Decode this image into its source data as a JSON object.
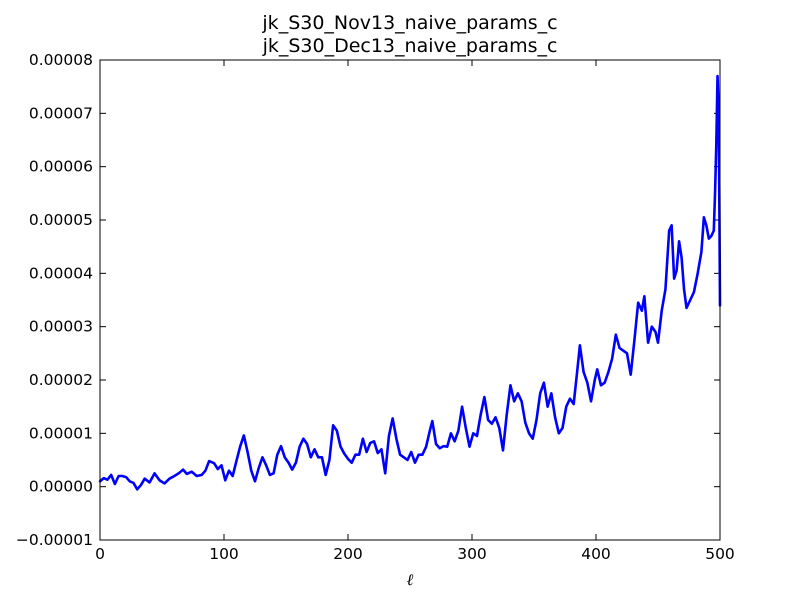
{
  "chart_data": {
    "type": "line",
    "title_lines": [
      "jk_S30_Nov13_naive_params_c",
      "jk_S30_Dec13_naive_params_c"
    ],
    "xlabel": "ℓ",
    "ylabel": "",
    "xlim": [
      0,
      500
    ],
    "ylim": [
      -1e-05,
      8e-05
    ],
    "x_ticks": [
      0,
      100,
      200,
      300,
      400,
      500
    ],
    "x_tick_labels": [
      "0",
      "100",
      "200",
      "300",
      "400",
      "500"
    ],
    "y_ticks": [
      -1e-05,
      0,
      1e-05,
      2e-05,
      3e-05,
      4e-05,
      5e-05,
      6e-05,
      7e-05,
      8e-05
    ],
    "y_tick_labels": [
      "−0.00001",
      "0.00000",
      "0.00001",
      "0.00002",
      "0.00003",
      "0.00004",
      "0.00005",
      "0.00006",
      "0.00007",
      "0.00008"
    ],
    "grid": false,
    "series": [
      {
        "color": "#0000ff",
        "points": [
          [
            0,
            1e-06
          ],
          [
            3,
            1.6e-06
          ],
          [
            6,
            1.3e-06
          ],
          [
            9,
            2.2e-06
          ],
          [
            12,
            5e-07
          ],
          [
            15,
            2e-06
          ],
          [
            18,
            2e-06
          ],
          [
            21,
            1.8e-06
          ],
          [
            24,
            1e-06
          ],
          [
            27,
            7e-07
          ],
          [
            30,
            -5e-07
          ],
          [
            33,
            3e-07
          ],
          [
            36,
            1.5e-06
          ],
          [
            40,
            8e-07
          ],
          [
            44,
            2.5e-06
          ],
          [
            48,
            1.2e-06
          ],
          [
            52,
            6e-07
          ],
          [
            56,
            1.5e-06
          ],
          [
            60,
            2e-06
          ],
          [
            64,
            2.6e-06
          ],
          [
            67,
            3.2e-06
          ],
          [
            70,
            2.4e-06
          ],
          [
            74,
            2.8e-06
          ],
          [
            78,
            2e-06
          ],
          [
            82,
            2.2e-06
          ],
          [
            85,
            3e-06
          ],
          [
            88,
            4.8e-06
          ],
          [
            92,
            4.4e-06
          ],
          [
            95,
            3.3e-06
          ],
          [
            98,
            4e-06
          ],
          [
            101,
            1.2e-06
          ],
          [
            104,
            3e-06
          ],
          [
            107,
            2e-06
          ],
          [
            110,
            4.8e-06
          ],
          [
            113,
            7.5e-06
          ],
          [
            116,
            9.6e-06
          ],
          [
            119,
            6.5e-06
          ],
          [
            122,
            3e-06
          ],
          [
            125,
            1e-06
          ],
          [
            128,
            3.5e-06
          ],
          [
            131,
            5.5e-06
          ],
          [
            134,
            4e-06
          ],
          [
            137,
            2.2e-06
          ],
          [
            140,
            2.5e-06
          ],
          [
            143,
            6e-06
          ],
          [
            146,
            7.6e-06
          ],
          [
            149,
            5.5e-06
          ],
          [
            152,
            4.5e-06
          ],
          [
            155,
            3.2e-06
          ],
          [
            158,
            4.5e-06
          ],
          [
            161,
            7.5e-06
          ],
          [
            164,
            9e-06
          ],
          [
            167,
            8e-06
          ],
          [
            170,
            5.5e-06
          ],
          [
            173,
            7e-06
          ],
          [
            176,
            5.5e-06
          ],
          [
            179,
            5.5e-06
          ],
          [
            182,
            2.2e-06
          ],
          [
            185,
            5e-06
          ],
          [
            188,
            1.15e-05
          ],
          [
            191,
            1.05e-05
          ],
          [
            194,
            7.5e-06
          ],
          [
            197,
            6.2e-06
          ],
          [
            200,
            5.2e-06
          ],
          [
            203,
            4.5e-06
          ],
          [
            206,
            6e-06
          ],
          [
            209,
            6e-06
          ],
          [
            212,
            9e-06
          ],
          [
            215,
            6.5e-06
          ],
          [
            218,
            8.2e-06
          ],
          [
            221,
            8.5e-06
          ],
          [
            224,
            6.3e-06
          ],
          [
            227,
            7e-06
          ],
          [
            230,
            2.5e-06
          ],
          [
            233,
            9.5e-06
          ],
          [
            236,
            1.28e-05
          ],
          [
            239,
            9e-06
          ],
          [
            242,
            6e-06
          ],
          [
            245,
            5.5e-06
          ],
          [
            248,
            5e-06
          ],
          [
            251,
            6.5e-06
          ],
          [
            254,
            4.5e-06
          ],
          [
            257,
            6e-06
          ],
          [
            260,
            6e-06
          ],
          [
            263,
            7.5e-06
          ],
          [
            266,
            1.05e-05
          ],
          [
            268,
            1.23e-05
          ],
          [
            271,
            8e-06
          ],
          [
            274,
            7.2e-06
          ],
          [
            277,
            7.6e-06
          ],
          [
            280,
            7.5e-06
          ],
          [
            283,
            1e-05
          ],
          [
            286,
            8.5e-06
          ],
          [
            289,
            1.05e-05
          ],
          [
            292,
            1.5e-05
          ],
          [
            295,
            1.1e-05
          ],
          [
            298,
            7.5e-06
          ],
          [
            301,
            1e-05
          ],
          [
            304,
            9.5e-06
          ],
          [
            307,
            1.35e-05
          ],
          [
            310,
            1.68e-05
          ],
          [
            313,
            1.25e-05
          ],
          [
            316,
            1.18e-05
          ],
          [
            319,
            1.3e-05
          ],
          [
            322,
            1.1e-05
          ],
          [
            325,
            6.8e-06
          ],
          [
            328,
            1.35e-05
          ],
          [
            331,
            1.9e-05
          ],
          [
            334,
            1.6e-05
          ],
          [
            337,
            1.75e-05
          ],
          [
            340,
            1.6e-05
          ],
          [
            343,
            1.2e-05
          ],
          [
            346,
            1e-05
          ],
          [
            349,
            9e-06
          ],
          [
            352,
            1.25e-05
          ],
          [
            355,
            1.75e-05
          ],
          [
            358,
            1.95e-05
          ],
          [
            361,
            1.5e-05
          ],
          [
            364,
            1.75e-05
          ],
          [
            367,
            1.3e-05
          ],
          [
            370,
            1e-05
          ],
          [
            373,
            1.1e-05
          ],
          [
            376,
            1.5e-05
          ],
          [
            379,
            1.65e-05
          ],
          [
            382,
            1.55e-05
          ],
          [
            385,
            2.2e-05
          ],
          [
            387,
            2.65e-05
          ],
          [
            390,
            2.15e-05
          ],
          [
            393,
            1.95e-05
          ],
          [
            396,
            1.6e-05
          ],
          [
            399,
            2e-05
          ],
          [
            401,
            2.2e-05
          ],
          [
            404,
            1.9e-05
          ],
          [
            407,
            1.95e-05
          ],
          [
            410,
            2.15e-05
          ],
          [
            413,
            2.4e-05
          ],
          [
            416,
            2.85e-05
          ],
          [
            419,
            2.6e-05
          ],
          [
            422,
            2.55e-05
          ],
          [
            425,
            2.5e-05
          ],
          [
            428,
            2.1e-05
          ],
          [
            431,
            2.75e-05
          ],
          [
            434,
            3.45e-05
          ],
          [
            437,
            3.3e-05
          ],
          [
            439,
            3.57e-05
          ],
          [
            442,
            2.7e-05
          ],
          [
            445,
            3e-05
          ],
          [
            448,
            2.9e-05
          ],
          [
            450,
            2.7e-05
          ],
          [
            453,
            3.3e-05
          ],
          [
            456,
            3.7e-05
          ],
          [
            459,
            4.8e-05
          ],
          [
            461,
            4.9e-05
          ],
          [
            463,
            3.9e-05
          ],
          [
            465,
            4.05e-05
          ],
          [
            467,
            4.6e-05
          ],
          [
            469,
            4.3e-05
          ],
          [
            471,
            3.7e-05
          ],
          [
            473,
            3.35e-05
          ],
          [
            476,
            3.5e-05
          ],
          [
            479,
            3.65e-05
          ],
          [
            482,
            4e-05
          ],
          [
            485,
            4.4e-05
          ],
          [
            487,
            5.05e-05
          ],
          [
            489,
            4.9e-05
          ],
          [
            491,
            4.65e-05
          ],
          [
            493,
            4.7e-05
          ],
          [
            495,
            4.8e-05
          ],
          [
            496,
            5.5e-05
          ],
          [
            497,
            6.4e-05
          ],
          [
            498,
            7.7e-05
          ],
          [
            499,
            7e-05
          ],
          [
            500,
            3.4e-05
          ]
        ]
      }
    ]
  }
}
